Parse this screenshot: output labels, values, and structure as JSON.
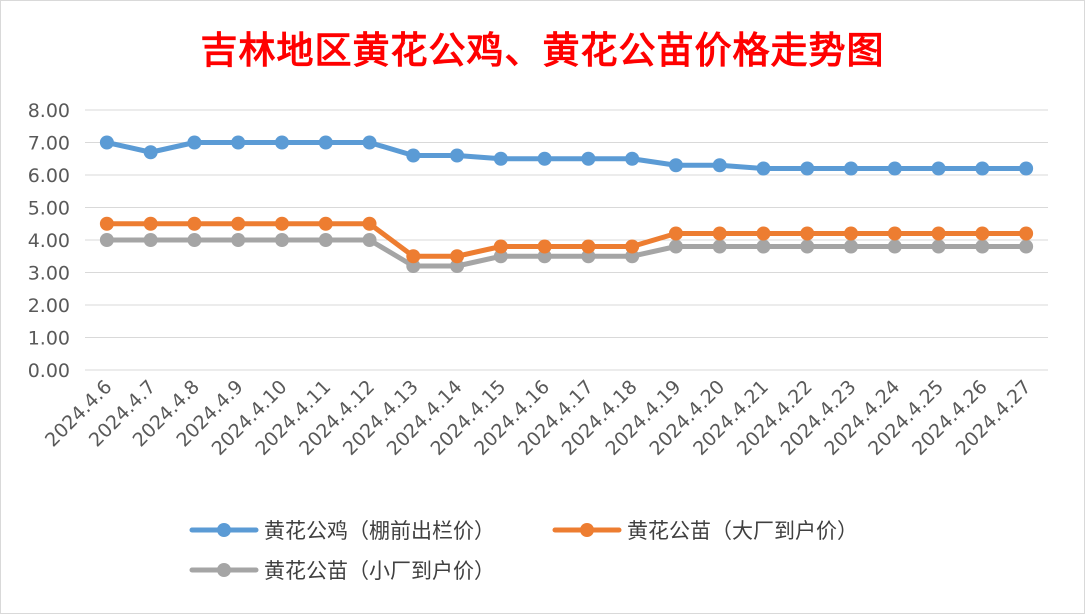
{
  "chart_data": {
    "type": "line",
    "title": "吉林地区黄花公鸡、黄花公苗价格走势图",
    "xlabel": "",
    "ylabel": "",
    "ylim": [
      0,
      8
    ],
    "y_ticks": [
      "0.00",
      "1.00",
      "2.00",
      "3.00",
      "4.00",
      "5.00",
      "6.00",
      "7.00",
      "8.00"
    ],
    "grid": "horizontal",
    "legend_position": "bottom",
    "categories": [
      "2024.4.6",
      "2024.4.7",
      "2024.4.8",
      "2024.4.9",
      "2024.4.10",
      "2024.4.11",
      "2024.4.12",
      "2024.4.13",
      "2024.4.14",
      "2024.4.15",
      "2024.4.16",
      "2024.4.17",
      "2024.4.18",
      "2024.4.19",
      "2024.4.20",
      "2024.4.21",
      "2024.4.22",
      "2024.4.23",
      "2024.4.24",
      "2024.4.25",
      "2024.4.26",
      "2024.4.27"
    ],
    "series": [
      {
        "name": "黄花公鸡（棚前出栏价）",
        "color": "#5b9bd5",
        "values": [
          7.0,
          6.7,
          7.0,
          7.0,
          7.0,
          7.0,
          7.0,
          6.6,
          6.6,
          6.5,
          6.5,
          6.5,
          6.5,
          6.3,
          6.3,
          6.2,
          6.2,
          6.2,
          6.2,
          6.2,
          6.2,
          6.2
        ]
      },
      {
        "name": "黄花公苗（大厂到户价）",
        "color": "#ed7d31",
        "values": [
          4.5,
          4.5,
          4.5,
          4.5,
          4.5,
          4.5,
          4.5,
          3.5,
          3.5,
          3.8,
          3.8,
          3.8,
          3.8,
          4.2,
          4.2,
          4.2,
          4.2,
          4.2,
          4.2,
          4.2,
          4.2,
          4.2
        ]
      },
      {
        "name": "黄花公苗（小厂到户价）",
        "color": "#a5a5a5",
        "values": [
          4.0,
          4.0,
          4.0,
          4.0,
          4.0,
          4.0,
          4.0,
          3.2,
          3.2,
          3.5,
          3.5,
          3.5,
          3.5,
          3.8,
          3.8,
          3.8,
          3.8,
          3.8,
          3.8,
          3.8,
          3.8,
          3.8
        ]
      }
    ]
  }
}
